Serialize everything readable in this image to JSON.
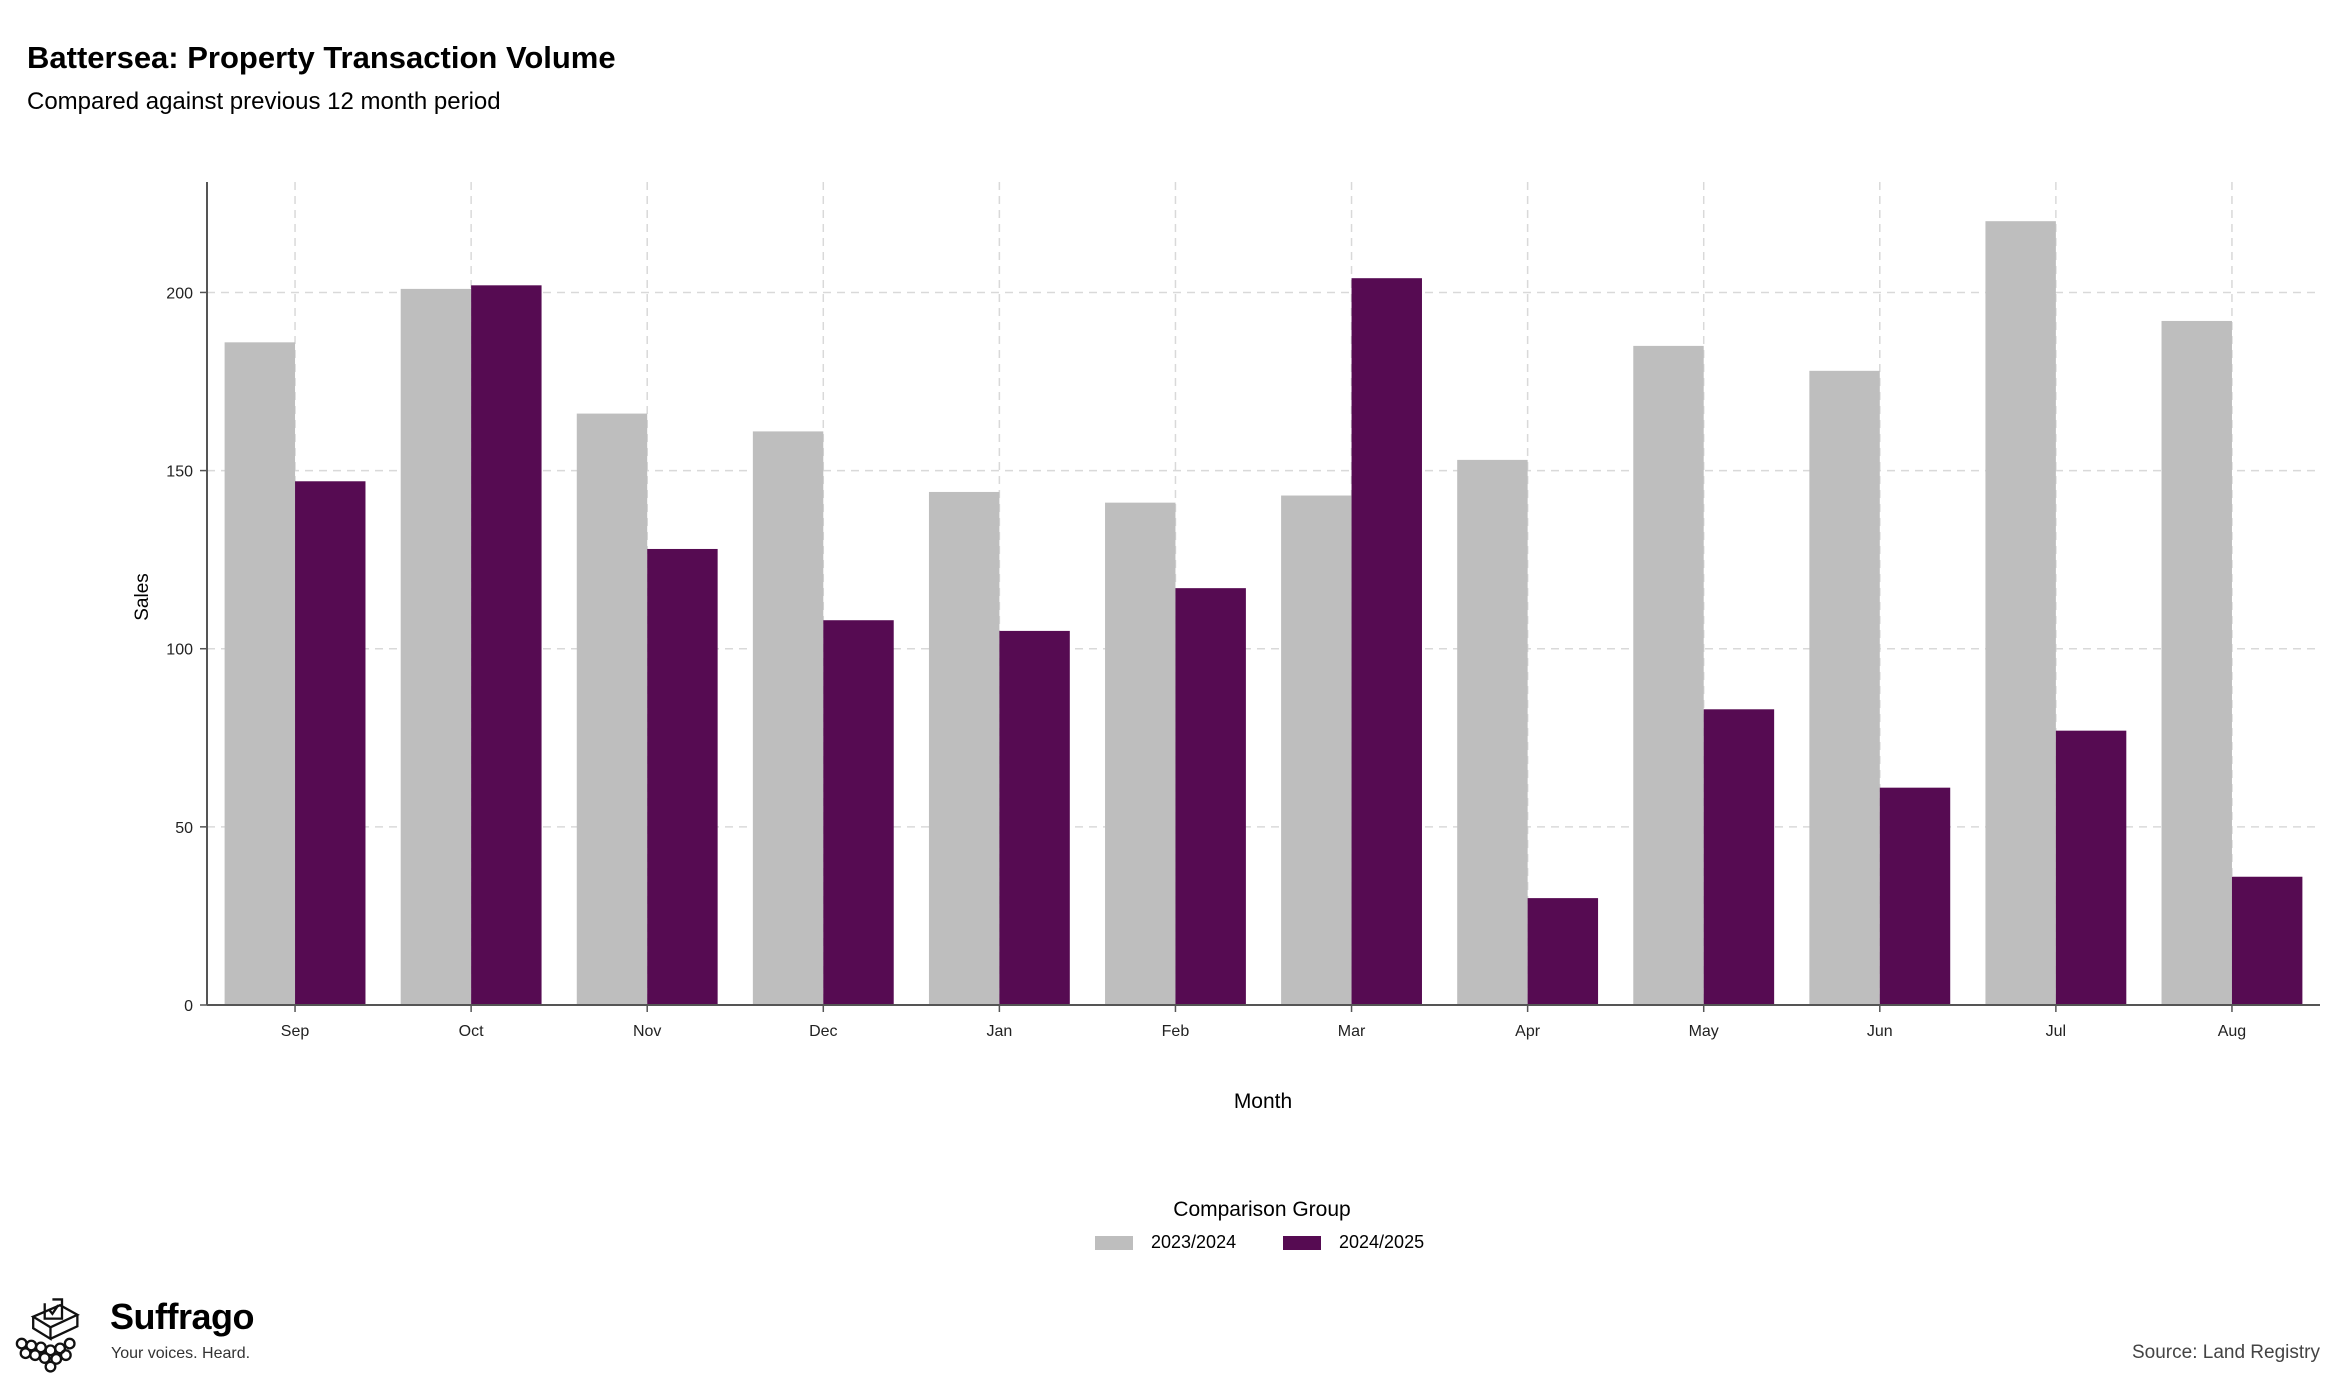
{
  "header": {
    "title": "Battersea: Property Transaction Volume",
    "subtitle": "Compared against previous 12 month period"
  },
  "legend": {
    "title": "Comparison Group"
  },
  "footer": {
    "brand": "Suffrago",
    "tagline": "Your voices. Heard.",
    "source": "Source: Land Registry"
  },
  "colors": {
    "series_2023": "#bebebe",
    "series_2024": "#560b52",
    "grid": "#d9d9d9",
    "axis": "#555555"
  },
  "chart_data": {
    "type": "bar",
    "categories": [
      "Sep",
      "Oct",
      "Nov",
      "Dec",
      "Jan",
      "Feb",
      "Mar",
      "Apr",
      "May",
      "Jun",
      "Jul",
      "Aug"
    ],
    "series": [
      {
        "name": "2023/2024",
        "values": [
          186,
          201,
          166,
          161,
          144,
          141,
          143,
          153,
          185,
          178,
          220,
          192
        ]
      },
      {
        "name": "2024/2025",
        "values": [
          147,
          202,
          128,
          108,
          105,
          117,
          204,
          30,
          83,
          61,
          77,
          36
        ]
      }
    ],
    "xlabel": "Month",
    "ylabel": "Sales",
    "ylim": [
      0,
      231
    ],
    "yticks": [
      0,
      50,
      100,
      150,
      200
    ],
    "grid": true,
    "legend_position": "bottom"
  }
}
